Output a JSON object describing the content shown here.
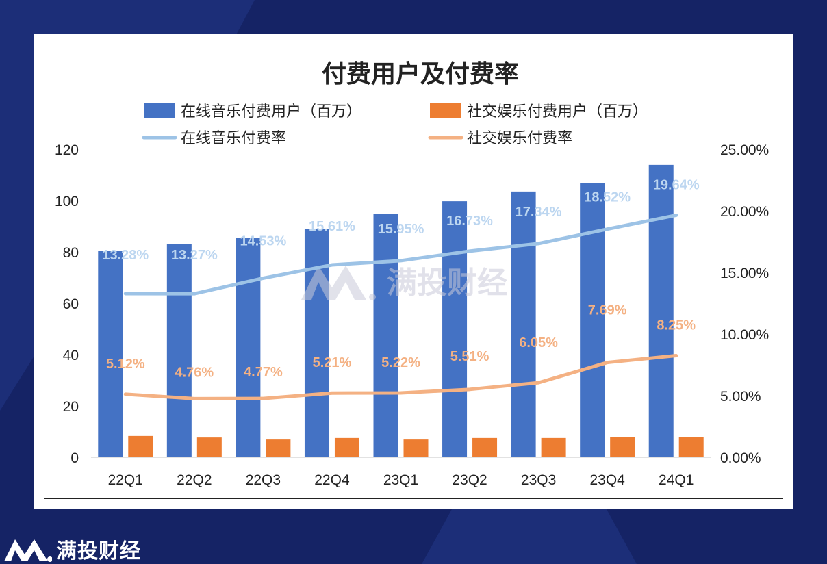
{
  "brand": {
    "name": "满投财经",
    "watermark": "满投财经",
    "logo_icon": "mountain-m-logo"
  },
  "colors": {
    "background": "#152365",
    "background_accent": "#1c2e78",
    "music_users": "#4472c4",
    "social_users": "#ed7d31",
    "music_rate": "#9dc3e6",
    "social_rate": "#f4b183"
  },
  "chart_data": {
    "type": "bar",
    "title": "付费用户及付费率",
    "categories": [
      "22Q1",
      "22Q2",
      "22Q3",
      "22Q4",
      "23Q1",
      "23Q2",
      "23Q3",
      "23Q4",
      "24Q1"
    ],
    "series": [
      {
        "name": "在线音乐付费用户（百万）",
        "type": "bar",
        "axis": "left",
        "values": [
          80.5,
          83.0,
          85.6,
          88.8,
          94.7,
          99.7,
          103.5,
          106.7,
          113.9
        ]
      },
      {
        "name": "社交娱乐付费用户（百万）",
        "type": "bar",
        "axis": "left",
        "values": [
          8.3,
          7.7,
          6.9,
          7.5,
          6.9,
          7.5,
          7.5,
          7.9,
          7.9
        ]
      },
      {
        "name": "在线音乐付费率",
        "type": "line",
        "axis": "right",
        "values": [
          13.28,
          13.27,
          14.53,
          15.61,
          15.95,
          16.73,
          17.34,
          18.52,
          19.64
        ],
        "labels": [
          "13.28%",
          "13.27%",
          "14.53%",
          "15.61%",
          "15.95%",
          "16.73%",
          "17.34%",
          "18.52%",
          "19.64%"
        ]
      },
      {
        "name": "社交娱乐付费率",
        "type": "line",
        "axis": "right",
        "values": [
          5.12,
          4.76,
          4.77,
          5.21,
          5.22,
          5.51,
          6.05,
          7.69,
          8.25
        ],
        "labels": [
          "5.12%",
          "4.76%",
          "4.77%",
          "5.21%",
          "5.22%",
          "5.51%",
          "6.05%",
          "7.69%",
          "8.25%"
        ]
      }
    ],
    "y_left": {
      "min": 0,
      "max": 120,
      "ticks": [
        "0",
        "20",
        "40",
        "60",
        "80",
        "100",
        "120"
      ]
    },
    "y_right": {
      "min": 0,
      "max": 25,
      "ticks": [
        "0.00%",
        "5.00%",
        "10.00%",
        "15.00%",
        "20.00%",
        "25.00%"
      ]
    },
    "xlabel": "",
    "ylabel": "",
    "grid": false,
    "legend": "top-center"
  }
}
